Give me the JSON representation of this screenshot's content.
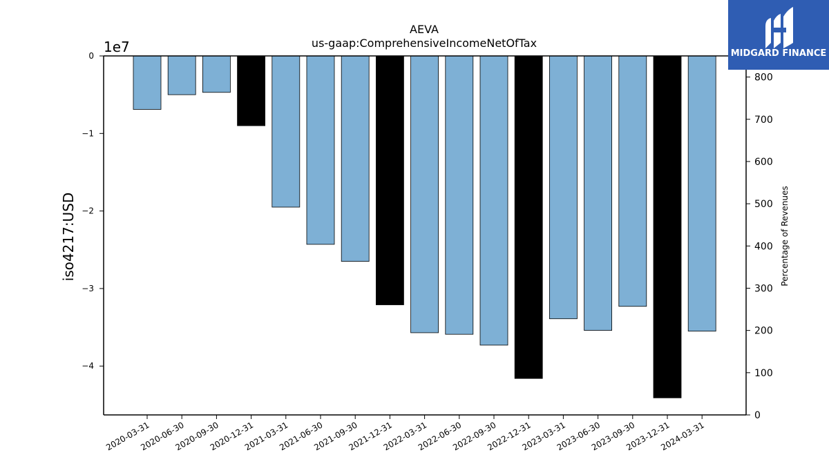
{
  "chart_data": {
    "type": "bar",
    "title": "AEVA",
    "subtitle": "us-gaap:ComprehensiveIncomeNetOfTax",
    "ylabel": "iso4217:USD",
    "ylabel_right": "Percentage of Revenues",
    "y_offset_text": "1e7",
    "categories": [
      "2020-03-31",
      "2020-06-30",
      "2020-09-30",
      "2020-12-31",
      "2021-03-31",
      "2021-06-30",
      "2021-09-30",
      "2021-12-31",
      "2022-03-31",
      "2022-06-30",
      "2022-09-30",
      "2022-12-31",
      "2023-03-31",
      "2023-06-30",
      "2023-09-30",
      "2023-12-31",
      "2024-03-31"
    ],
    "values": [
      -6900000,
      -5000000,
      -4700000,
      -9000000,
      -19500000,
      -24300000,
      -26500000,
      -32100000,
      -35700000,
      -35900000,
      -37300000,
      -41600000,
      -33900000,
      -35400000,
      -32300000,
      -44100000,
      -35500000
    ],
    "annual_period": [
      false,
      false,
      false,
      true,
      false,
      false,
      false,
      true,
      false,
      false,
      false,
      true,
      false,
      false,
      false,
      true,
      false
    ],
    "colors": {
      "quarter_bar": "#7eb0d5",
      "annual_bar": "#000000",
      "bar_edge": "#000000"
    },
    "ylim": [
      -46300000,
      0
    ],
    "yticks": [
      0,
      -10000000,
      -20000000,
      -30000000,
      -40000000
    ],
    "ytick_labels": [
      "0",
      "−1",
      "−2",
      "−3",
      "−4"
    ],
    "ylim_right": [
      0,
      850
    ],
    "yticks_right": [
      0,
      100,
      200,
      300,
      400,
      500,
      600,
      700,
      800
    ],
    "ytick_labels_right": [
      "0",
      "100",
      "200",
      "300",
      "400",
      "500",
      "600",
      "700",
      "800"
    ],
    "grid": false,
    "legend": "none"
  },
  "logo": {
    "text": "MIDGARD FINANCE",
    "background": "#2f5db3"
  }
}
